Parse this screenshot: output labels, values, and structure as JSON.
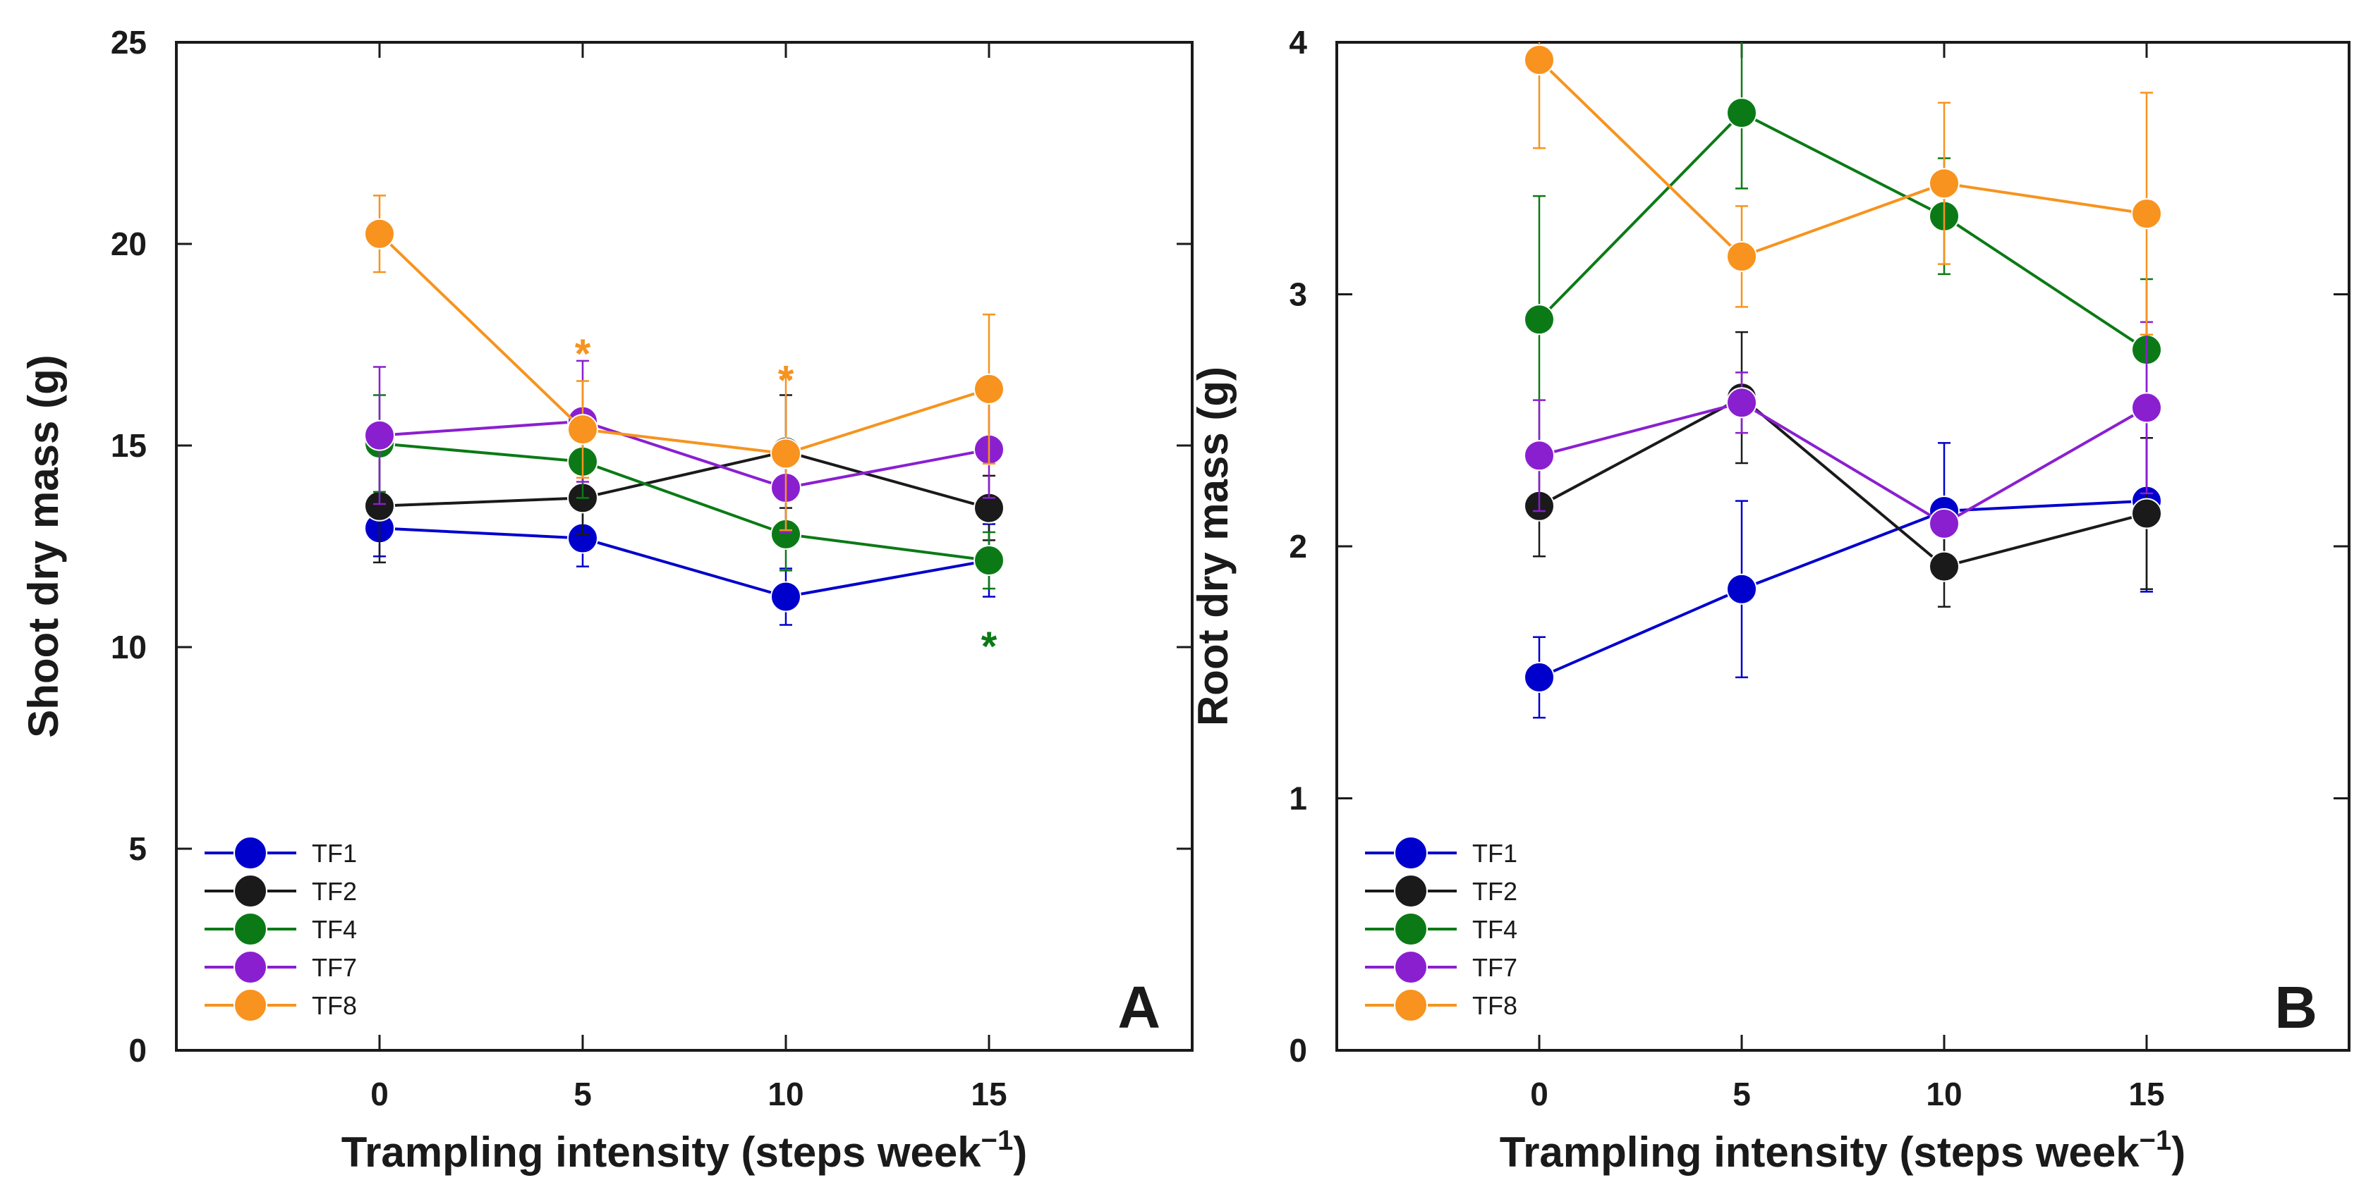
{
  "chart_data": [
    {
      "type": "line",
      "panel_label": "A",
      "xlabel": "Trampling intensity (steps week",
      "xlabel_superscript": "−1",
      "xlabel_close": ")",
      "ylabel": "Shoot dry mass (g)",
      "x": [
        0,
        5,
        10,
        15
      ],
      "xlim": [
        -5,
        20
      ],
      "ylim": [
        0,
        25
      ],
      "x_ticks": [
        "0",
        "5",
        "10",
        "15"
      ],
      "y_ticks": [
        "0",
        "5",
        "10",
        "15",
        "20",
        "25"
      ],
      "legend_position": "bottom-left",
      "series": [
        {
          "name": "TF1",
          "color": "#0000cc",
          "values": [
            12.95,
            12.7,
            11.25,
            12.15
          ],
          "err": [
            0.7,
            0.7,
            0.7,
            0.9
          ]
        },
        {
          "name": "TF2",
          "color": "#1a1a1a",
          "values": [
            13.5,
            13.7,
            14.85,
            13.45
          ],
          "err": [
            1.4,
            0.9,
            1.4,
            0.8
          ]
        },
        {
          "name": "TF4",
          "color": "#0b7a16",
          "values": [
            15.05,
            14.6,
            12.8,
            12.15
          ],
          "err": [
            1.2,
            0.9,
            0.9,
            0.7
          ]
        },
        {
          "name": "TF7",
          "color": "#8a1fd0",
          "values": [
            15.25,
            15.6,
            13.95,
            14.9
          ],
          "err": [
            1.7,
            1.5,
            1.1,
            1.2
          ]
        },
        {
          "name": "TF8",
          "color": "#f7931e",
          "values": [
            20.25,
            15.4,
            14.8,
            16.4
          ],
          "err": [
            0.95,
            1.2,
            1.9,
            1.85
          ]
        }
      ],
      "annotations": [
        {
          "text": "*",
          "x": 5,
          "y": 17.55,
          "color": "#f7931e"
        },
        {
          "text": "*",
          "x": 10,
          "y": 16.9,
          "color": "#f7931e"
        },
        {
          "text": "*",
          "x": 15,
          "y": 10.3,
          "color": "#0b7a16"
        }
      ]
    },
    {
      "type": "line",
      "panel_label": "B",
      "xlabel": "Trampling intensity (steps week",
      "xlabel_superscript": "−1",
      "xlabel_close": ")",
      "ylabel": "Root dry mass (g)",
      "x": [
        0,
        5,
        10,
        15
      ],
      "xlim": [
        -5,
        20
      ],
      "ylim": [
        0,
        4
      ],
      "x_ticks": [
        "0",
        "5",
        "10",
        "15"
      ],
      "y_ticks": [
        "0",
        "1",
        "2",
        "3",
        "4"
      ],
      "legend_position": "bottom-left",
      "series": [
        {
          "name": "TF1",
          "color": "#0000cc",
          "values": [
            1.48,
            1.83,
            2.14,
            2.18
          ],
          "err": [
            0.16,
            0.35,
            0.27,
            0.36
          ]
        },
        {
          "name": "TF2",
          "color": "#1a1a1a",
          "values": [
            2.16,
            2.59,
            1.92,
            2.13
          ],
          "err": [
            0.2,
            0.26,
            0.16,
            0.3
          ]
        },
        {
          "name": "TF4",
          "color": "#0b7a16",
          "values": [
            2.9,
            3.72,
            3.31,
            2.78
          ],
          "err": [
            0.49,
            0.3,
            0.23,
            0.28
          ]
        },
        {
          "name": "TF7",
          "color": "#8a1fd0",
          "values": [
            2.36,
            2.57,
            2.09,
            2.55
          ],
          "err": [
            0.22,
            0.12,
            0.05,
            0.34
          ]
        },
        {
          "name": "TF8",
          "color": "#f7931e",
          "values": [
            3.93,
            3.15,
            3.44,
            3.32
          ],
          "err": [
            0.35,
            0.2,
            0.32,
            0.48
          ]
        }
      ],
      "annotations": []
    }
  ]
}
